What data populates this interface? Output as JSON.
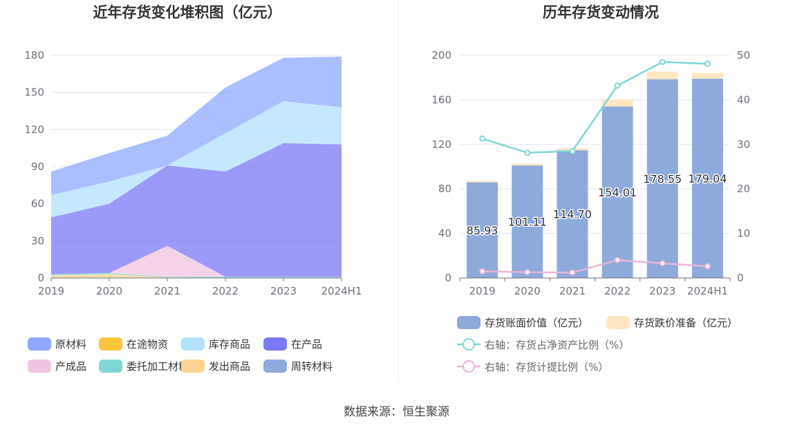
{
  "source": "数据来源：恒生聚源",
  "chart_data": [
    {
      "type": "area",
      "stacked": true,
      "title": "近年存货变化堆积图（亿元）",
      "categories": [
        "2019",
        "2020",
        "2021",
        "2022",
        "2023",
        "2024H1"
      ],
      "ylim": [
        0,
        180
      ],
      "yticks": [
        0,
        30,
        60,
        90,
        120,
        150,
        180
      ],
      "grid": true,
      "legend_position": "bottom",
      "series": [
        {
          "name": "原材料",
          "color": "#8fa8ff",
          "values": [
            19,
            23,
            24,
            37,
            35,
            41
          ]
        },
        {
          "name": "在途物资",
          "color": "#ffc53d",
          "values": [
            0,
            0,
            0,
            0,
            0,
            0
          ]
        },
        {
          "name": "库存商品",
          "color": "#b3e0ff",
          "values": [
            18,
            18,
            0,
            31,
            34,
            30
          ]
        },
        {
          "name": "在产品",
          "color": "#7b78f5",
          "values": [
            46,
            56,
            65,
            85,
            108,
            107
          ]
        },
        {
          "name": "产成品",
          "color": "#f0c4e0",
          "values": [
            0,
            0,
            25,
            0,
            0,
            0
          ]
        },
        {
          "name": "委托加工材料",
          "color": "#7fd6d6",
          "values": [
            1,
            1,
            0.5,
            1,
            1,
            1
          ]
        },
        {
          "name": "发出商品",
          "color": "#ffd591",
          "values": [
            2,
            3,
            0.5,
            0,
            0,
            0
          ]
        },
        {
          "name": "周转材料",
          "color": "#8eaadb",
          "values": [
            0,
            0,
            0,
            0,
            0,
            0
          ]
        }
      ]
    },
    {
      "type": "bar",
      "title": "历年存货变动情况",
      "categories": [
        "2019",
        "2020",
        "2021",
        "2022",
        "2023",
        "2024H1"
      ],
      "ylim": [
        0,
        200
      ],
      "yticks": [
        0,
        40,
        80,
        120,
        160,
        200
      ],
      "y2lim": [
        0,
        50
      ],
      "y2ticks": [
        0,
        10,
        20,
        30,
        40,
        50
      ],
      "legend_position": "bottom",
      "bar_series": [
        {
          "name": "存货账面价值（亿元）",
          "color": "#8eaadb",
          "values": [
            85.93,
            101.11,
            114.7,
            154.01,
            178.55,
            179.04
          ],
          "labels": [
            "85.93",
            "101.11",
            "114.70",
            "154.01",
            "178.55",
            "179.04"
          ]
        },
        {
          "name": "存货跌价准备（亿元）",
          "color": "#ffe7c2",
          "values": [
            1.3,
            1.5,
            1.7,
            6.5,
            6.8,
            5.2
          ]
        }
      ],
      "line_series": [
        {
          "name": "右轴：存货占净资产比例（%）",
          "color": "#7fd6d6",
          "values": [
            31.3,
            28.1,
            28.5,
            43.2,
            48.5,
            48.1
          ]
        },
        {
          "name": "右轴：存货计提比例（%）",
          "color": "#e8b4d8",
          "values": [
            1.5,
            1.3,
            1.2,
            4.0,
            3.3,
            2.6
          ]
        }
      ]
    }
  ]
}
